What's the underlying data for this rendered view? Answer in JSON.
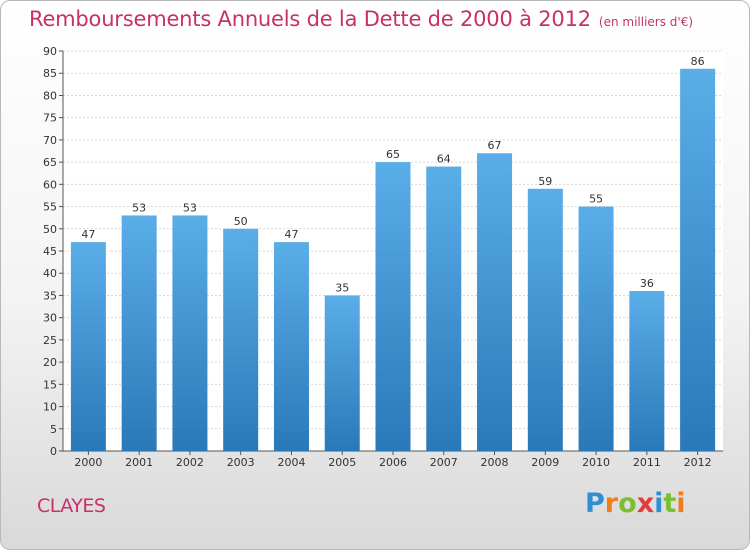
{
  "chart_data": {
    "type": "bar",
    "title": "Remboursements Annuels de la Dette de 2000 à 2012",
    "subtitle": "(en milliers d'€)",
    "categories": [
      "2000",
      "2001",
      "2002",
      "2003",
      "2004",
      "2005",
      "2006",
      "2007",
      "2008",
      "2009",
      "2010",
      "2011",
      "2012"
    ],
    "values": [
      47,
      53,
      53,
      50,
      47,
      35,
      65,
      64,
      67,
      59,
      55,
      36,
      86
    ],
    "ylim": [
      0,
      90
    ],
    "yticks": [
      0,
      5,
      10,
      15,
      20,
      25,
      30,
      35,
      40,
      45,
      50,
      55,
      60,
      65,
      70,
      75,
      80,
      85,
      90
    ],
    "grid": true,
    "bar_color": "#3b8fd4"
  },
  "commune": "CLAYES",
  "logo": {
    "letters": [
      "P",
      "r",
      "o",
      "x",
      "i",
      "t",
      "i"
    ],
    "colors": [
      "#2f8fd5",
      "#f07d1a",
      "#7bbf2e",
      "#e23c3c",
      "#2f8fd5",
      "#7bbf2e",
      "#f07d1a"
    ]
  },
  "colors": {
    "accent": "#c8306a"
  }
}
